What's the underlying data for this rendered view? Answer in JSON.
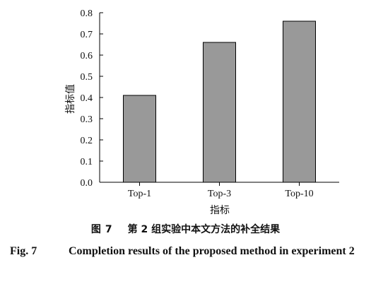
{
  "chart_data": {
    "type": "bar",
    "categories": [
      "Top-1",
      "Top-3",
      "Top-10"
    ],
    "values": [
      0.41,
      0.66,
      0.76
    ],
    "xlabel": "指标",
    "ylabel": "指标值",
    "ylim": [
      0,
      0.8
    ],
    "yticks": [
      "0.0",
      "0.1",
      "0.2",
      "0.3",
      "0.4",
      "0.5",
      "0.6",
      "0.7",
      "0.8"
    ],
    "bar_color": "#999999",
    "grid": false,
    "legend": "none"
  },
  "caption": {
    "cn_label": "图",
    "cn_number": "7",
    "cn_text": "第 2 组实验中本文方法的补全结果",
    "en_label": "Fig. 7",
    "en_text": "Completion results of the proposed method in experiment 2"
  }
}
